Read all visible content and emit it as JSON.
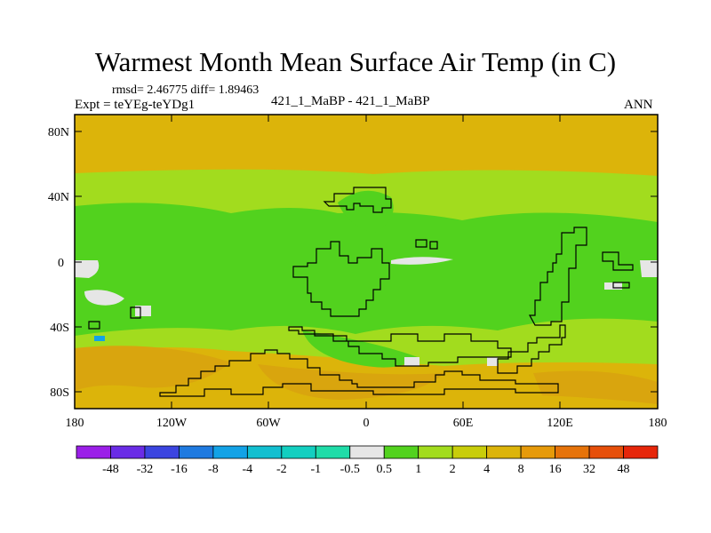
{
  "header": {
    "title": "Warmest Month Mean Surface Air Temp (in C)",
    "stats": "rmsd= 2.46775  diff= 1.89463",
    "experiment": "Expt = teYEg-teYDg1",
    "comparison": "421_1_MaBP - 421_1_MaBP",
    "season": "ANN"
  },
  "map": {
    "lat_ticks": [
      "80N",
      "40N",
      "0",
      "40S",
      "80S"
    ],
    "lon_ticks": [
      "180",
      "120W",
      "60W",
      "0",
      "60E",
      "120E",
      "180"
    ]
  },
  "colorbar": {
    "labels": [
      "-48",
      "-32",
      "-16",
      "-8",
      "-4",
      "-2",
      "-1",
      "-0.5",
      "0.5",
      "1",
      "2",
      "4",
      "8",
      "16",
      "32",
      "48"
    ],
    "colors": [
      "#9b1fe8",
      "#6a2ce6",
      "#3b45e0",
      "#1f7ae0",
      "#13a2e6",
      "#12bfd0",
      "#13cfc0",
      "#1fdca8",
      "#e6e6e6",
      "#52d21e",
      "#a2dc1e",
      "#c8cd0a",
      "#dcb40a",
      "#e69a0a",
      "#e6730a",
      "#e64f0a",
      "#e6260a"
    ]
  }
}
